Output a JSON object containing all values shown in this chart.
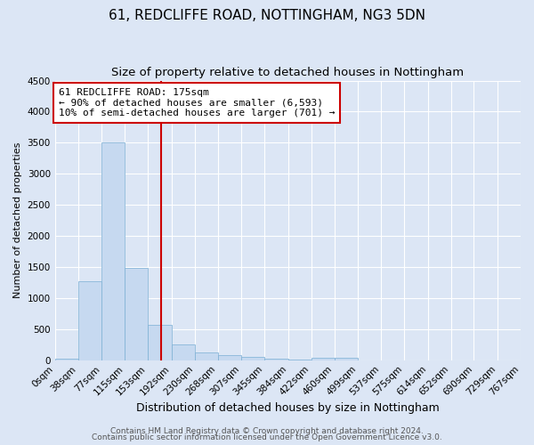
{
  "title1": "61, REDCLIFFE ROAD, NOTTINGHAM, NG3 5DN",
  "title2": "Size of property relative to detached houses in Nottingham",
  "xlabel": "Distribution of detached houses by size in Nottingham",
  "ylabel": "Number of detached properties",
  "bin_edges": [
    0,
    38,
    77,
    115,
    153,
    192,
    230,
    268,
    307,
    345,
    384,
    422,
    460,
    499,
    537,
    575,
    614,
    652,
    690,
    729,
    767
  ],
  "bar_heights": [
    30,
    1270,
    3500,
    1480,
    570,
    250,
    130,
    85,
    50,
    25,
    15,
    35,
    35,
    2,
    2,
    2,
    2,
    2,
    2,
    2
  ],
  "bar_color": "#c6d9f0",
  "bar_edgecolor": "#7bafd4",
  "background_color": "#dce6f5",
  "plot_bg_color": "#dce6f5",
  "grid_color": "#ffffff",
  "red_line_x": 175,
  "annotation_line1": "61 REDCLIFFE ROAD: 175sqm",
  "annotation_line2": "← 90% of detached houses are smaller (6,593)",
  "annotation_line3": "10% of semi-detached houses are larger (701) →",
  "annotation_box_color": "#ffffff",
  "annotation_box_edgecolor": "#cc0000",
  "ylim": [
    0,
    4500
  ],
  "yticks": [
    0,
    500,
    1000,
    1500,
    2000,
    2500,
    3000,
    3500,
    4000,
    4500
  ],
  "footer1": "Contains HM Land Registry data © Crown copyright and database right 2024.",
  "footer2": "Contains public sector information licensed under the Open Government Licence v3.0.",
  "title1_fontsize": 11,
  "title2_fontsize": 9.5,
  "xlabel_fontsize": 9,
  "ylabel_fontsize": 8,
  "tick_fontsize": 7.5,
  "annotation_fontsize": 8,
  "footer_fontsize": 6.5
}
